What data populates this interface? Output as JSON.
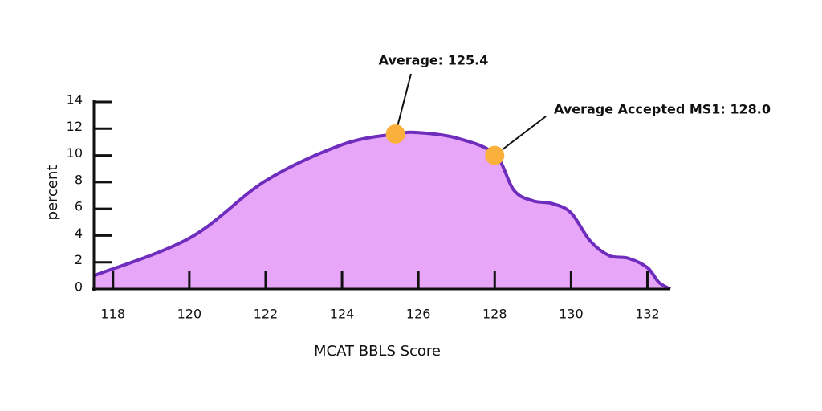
{
  "chart_data": {
    "type": "area",
    "x_label": "MCAT BBLS Score",
    "y_label": "percent",
    "series": [
      {
        "color": "#6e2dbd",
        "fill": "#e8a6f8",
        "x": [
          117.5,
          120,
          122,
          124,
          125.4,
          126,
          127,
          128,
          128.5,
          129,
          129.5,
          130,
          130.5,
          131,
          131.5,
          132,
          132.3,
          132.6
        ],
        "values": [
          1.0,
          3.8,
          8.1,
          10.8,
          11.6,
          11.7,
          11.3,
          10.1,
          7.4,
          6.6,
          6.4,
          5.7,
          3.6,
          2.5,
          2.3,
          1.6,
          0.5,
          0
        ]
      }
    ],
    "annotations": [
      {
        "text": "Average: 125.4",
        "x": 125.4,
        "y": 11.6
      },
      {
        "text": "Average Accepted MS1: 128.0",
        "x": 128.0,
        "y": 10.0
      }
    ],
    "marker_color": "#fbb03b",
    "xlim": [
      117.5,
      132.6
    ],
    "ylim": [
      0,
      14
    ],
    "xticks": [
      118,
      120,
      122,
      124,
      126,
      128,
      130,
      132
    ],
    "yticks": [
      0,
      2,
      4,
      6,
      8,
      10,
      12,
      14
    ]
  }
}
